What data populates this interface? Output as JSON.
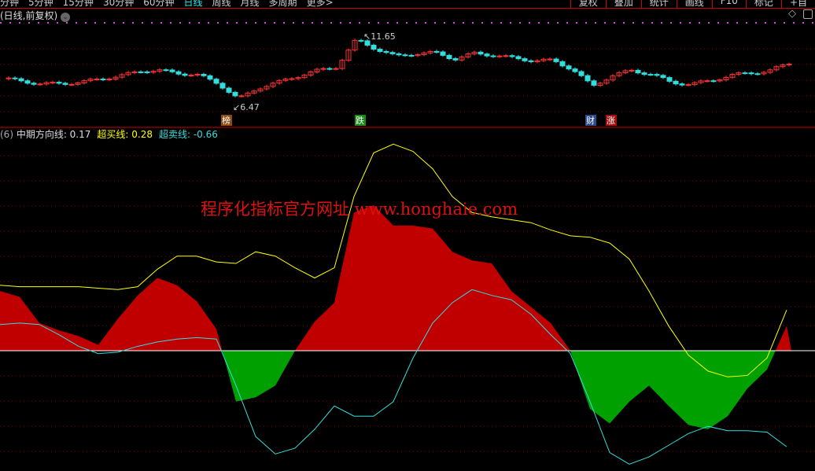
{
  "toolbar": {
    "periods": [
      "分钟",
      "5分钟",
      "15分钟",
      "30分钟",
      "60分钟",
      "日线",
      "周线",
      "月线",
      "多周期",
      "更多>"
    ],
    "active": "日线",
    "tools": [
      "复权",
      "叠加",
      "统计",
      "画线",
      "F10",
      "标记",
      "+自"
    ]
  },
  "main": {
    "title": "(日线,前复权)",
    "high_label": "11.65",
    "low_label": "6.47",
    "markers": [
      {
        "text": "榜",
        "color": "#8b4a10"
      },
      {
        "text": "跌",
        "color": "#1a8a1a"
      },
      {
        "text": "财",
        "color": "#2a4a8a"
      },
      {
        "text": "涨",
        "color": "#a01010"
      }
    ]
  },
  "indicator": {
    "prefix": "(6)",
    "items": [
      {
        "label": "中期方向线:",
        "value": "0.17",
        "color": "#dddddd"
      },
      {
        "label": "超买线:",
        "value": "0.28",
        "color": "#ffff00"
      },
      {
        "label": "超卖线:",
        "value": "-0.66",
        "color": "#33dddd"
      }
    ]
  },
  "watermark": "程序化指标官方网址 www.honghaie.com",
  "colors": {
    "up": "#ff3333",
    "down": "#33dddd",
    "positive_fill": "#c00000",
    "negative_fill": "#00a000",
    "overbought": "#ffff00",
    "oversold": "#33dddd",
    "grid": "#8b0000"
  },
  "chart_data": [
    {
      "type": "candlestick",
      "description_values": "approximate closing price path",
      "close": [
        8.26,
        8.08,
        7.84,
        7.9,
        7.96,
        8.26,
        8.44,
        8.85,
        8.85,
        8.67,
        8.5,
        7.9,
        6.7,
        7.55,
        7.96,
        8.44,
        8.85,
        9.15,
        11.2,
        10.52,
        9.93,
        10.16,
        10.22,
        9.75,
        10.16,
        10.04,
        9.8,
        9.63,
        9.63,
        8.97,
        7.66,
        8.5,
        8.85,
        8.61,
        7.96,
        7.84,
        8.08,
        8.5,
        8.67,
        8.85,
        9.4
      ],
      "high": 11.65,
      "low": 6.47
    },
    {
      "type": "area+line",
      "series": [
        {
          "name": "中期方向线",
          "kind": "histogram",
          "values": [
            0.41,
            0.37,
            0.19,
            0.14,
            0.1,
            0.04,
            0.22,
            0.38,
            0.5,
            0.45,
            0.34,
            0.15,
            -0.35,
            -0.32,
            -0.24,
            0.0,
            0.2,
            0.33,
            0.95,
            1.0,
            0.86,
            0.86,
            0.84,
            0.68,
            0.62,
            0.6,
            0.41,
            0.3,
            0.19,
            0.0,
            -0.4,
            -0.5,
            -0.35,
            -0.24,
            -0.38,
            -0.51,
            -0.54,
            -0.45,
            -0.26,
            -0.13,
            0.17
          ]
        },
        {
          "name": "超买线",
          "kind": "line",
          "values": [
            0.45,
            0.44,
            0.44,
            0.44,
            0.44,
            0.43,
            0.42,
            0.44,
            0.56,
            0.65,
            0.65,
            0.61,
            0.6,
            0.68,
            0.65,
            0.57,
            0.5,
            0.57,
            1.06,
            1.36,
            1.42,
            1.37,
            1.25,
            1.06,
            0.95,
            0.92,
            0.9,
            0.88,
            0.83,
            0.79,
            0.78,
            0.74,
            0.63,
            0.41,
            0.17,
            -0.03,
            -0.14,
            -0.18,
            -0.17,
            -0.05,
            0.28
          ]
        },
        {
          "name": "超卖线",
          "kind": "line",
          "values": [
            0.18,
            0.19,
            0.18,
            0.11,
            0.03,
            -0.02,
            -0.01,
            0.03,
            0.06,
            0.08,
            0.09,
            0.08,
            -0.24,
            -0.59,
            -0.71,
            -0.67,
            -0.54,
            -0.38,
            -0.45,
            -0.45,
            -0.35,
            -0.05,
            0.19,
            0.33,
            0.42,
            0.38,
            0.35,
            0.25,
            0.11,
            -0.02,
            -0.35,
            -0.7,
            -0.78,
            -0.73,
            -0.65,
            -0.57,
            -0.52,
            -0.55,
            -0.55,
            -0.56,
            -0.66
          ]
        }
      ]
    }
  ]
}
